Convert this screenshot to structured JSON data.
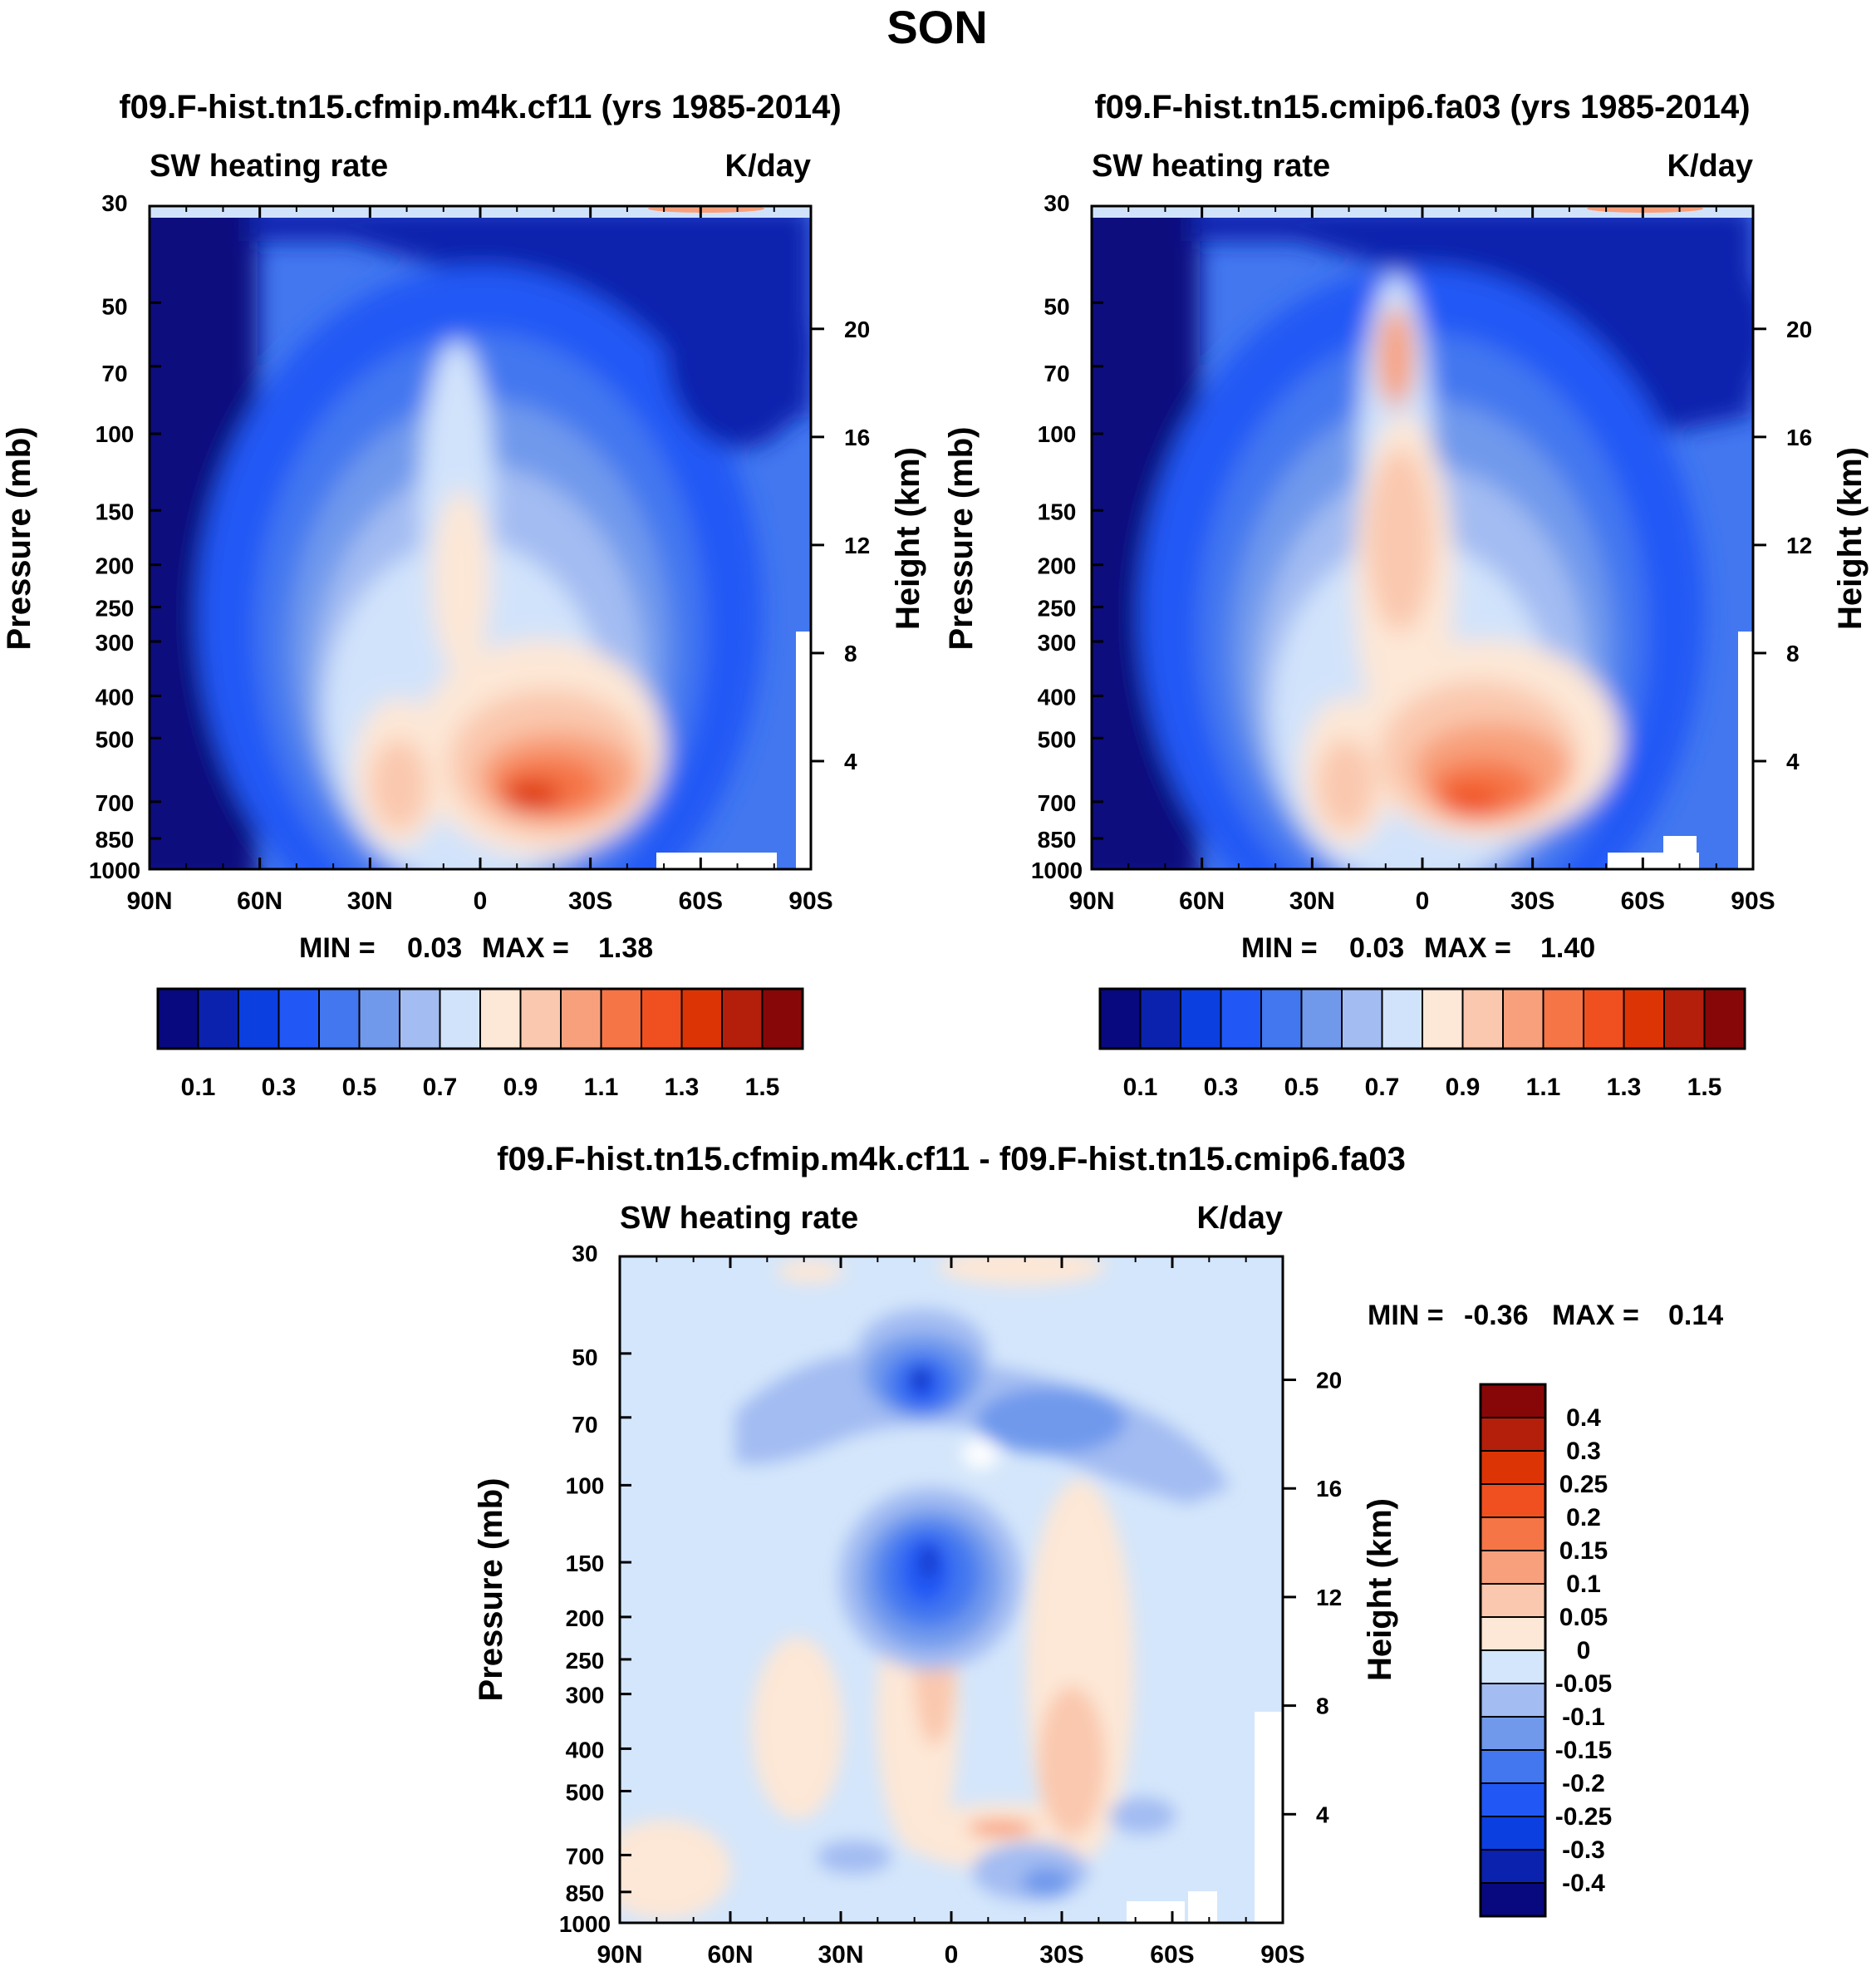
{
  "figure": {
    "season": "SON"
  },
  "palettes": {
    "abs": [
      "#08097e",
      "#0a22ad",
      "#0b3fdf",
      "#2158f5",
      "#4277f0",
      "#7099ec",
      "#a3bcf2",
      "#d1e3fb",
      "#fde7d6",
      "#fac8ae",
      "#f8a07c",
      "#f57547",
      "#f0501f",
      "#dd3406",
      "#b41f0b",
      "#870708"
    ],
    "diff": [
      "#08097e",
      "#0a22ad",
      "#0b3fdf",
      "#2158f5",
      "#4277f0",
      "#7099ec",
      "#a3bcf2",
      "#d4e6fb",
      "#fde7d6",
      "#fac8ae",
      "#f8a07c",
      "#f57547",
      "#f0501f",
      "#dd3406",
      "#b41f0b",
      "#870708"
    ]
  },
  "chart_data": [
    {
      "type": "heatmap",
      "id": "panel-1",
      "title": "f09.F-hist.tn15.cfmip.m4k.cf11 (yrs 1985-2014)",
      "left_label": "SW heating rate",
      "right_label": "K/day",
      "ylabel": "Pressure (mb)",
      "ylabel_right": "Height (km)",
      "x_ticks": [
        "90N",
        "60N",
        "30N",
        "0",
        "30S",
        "60S",
        "90S"
      ],
      "y_ticks": [
        "30",
        "50",
        "70",
        "100",
        "150",
        "200",
        "250",
        "300",
        "400",
        "500",
        "700",
        "850",
        "1000"
      ],
      "height_ticks": [
        "20",
        "16",
        "12",
        "8",
        "4"
      ],
      "xlim": [
        -90,
        90
      ],
      "ylim": [
        1000,
        30
      ],
      "min_label": "MIN =",
      "min_value": "0.03",
      "max_label": "MAX =",
      "max_value": "1.38",
      "colorbar_labels": [
        "0.1",
        "0.3",
        "0.5",
        "0.7",
        "0.9",
        "1.1",
        "1.3",
        "1.5"
      ],
      "colorbar_levels": [
        0.1,
        0.2,
        0.3,
        0.4,
        0.5,
        0.6,
        0.7,
        0.8,
        0.9,
        1.0,
        1.1,
        1.2,
        1.3,
        1.4,
        1.5
      ]
    },
    {
      "type": "heatmap",
      "id": "panel-2",
      "title": "f09.F-hist.tn15.cmip6.fa03 (yrs 1985-2014)",
      "left_label": "SW heating rate",
      "right_label": "K/day",
      "ylabel": "Pressure (mb)",
      "ylabel_right": "Height (km)",
      "x_ticks": [
        "90N",
        "60N",
        "30N",
        "0",
        "30S",
        "60S",
        "90S"
      ],
      "y_ticks": [
        "30",
        "50",
        "70",
        "100",
        "150",
        "200",
        "250",
        "300",
        "400",
        "500",
        "700",
        "850",
        "1000"
      ],
      "height_ticks": [
        "20",
        "16",
        "12",
        "8",
        "4"
      ],
      "xlim": [
        -90,
        90
      ],
      "ylim": [
        1000,
        30
      ],
      "min_label": "MIN =",
      "min_value": "0.03",
      "max_label": "MAX =",
      "max_value": "1.40",
      "colorbar_labels": [
        "0.1",
        "0.3",
        "0.5",
        "0.7",
        "0.9",
        "1.1",
        "1.3",
        "1.5"
      ],
      "colorbar_levels": [
        0.1,
        0.2,
        0.3,
        0.4,
        0.5,
        0.6,
        0.7,
        0.8,
        0.9,
        1.0,
        1.1,
        1.2,
        1.3,
        1.4,
        1.5
      ]
    },
    {
      "type": "heatmap",
      "id": "panel-diff",
      "title": "f09.F-hist.tn15.cfmip.m4k.cf11 - f09.F-hist.tn15.cmip6.fa03",
      "left_label": "SW heating rate",
      "right_label": "K/day",
      "ylabel": "Pressure (mb)",
      "ylabel_right": "Height (km)",
      "x_ticks": [
        "90N",
        "60N",
        "30N",
        "0",
        "30S",
        "60S",
        "90S"
      ],
      "y_ticks": [
        "30",
        "50",
        "70",
        "100",
        "150",
        "200",
        "250",
        "300",
        "400",
        "500",
        "700",
        "850",
        "1000"
      ],
      "height_ticks": [
        "20",
        "16",
        "12",
        "8",
        "4"
      ],
      "xlim": [
        -90,
        90
      ],
      "ylim": [
        1000,
        30
      ],
      "min_label": "MIN =",
      "min_value": "-0.36",
      "max_label": "MAX =",
      "max_value": "0.14",
      "colorbar_labels": [
        "0.4",
        "0.3",
        "0.25",
        "0.2",
        "0.15",
        "0.1",
        "0.05",
        "0",
        "-0.05",
        "-0.1",
        "-0.15",
        "-0.2",
        "-0.25",
        "-0.3",
        "-0.4"
      ]
    }
  ]
}
